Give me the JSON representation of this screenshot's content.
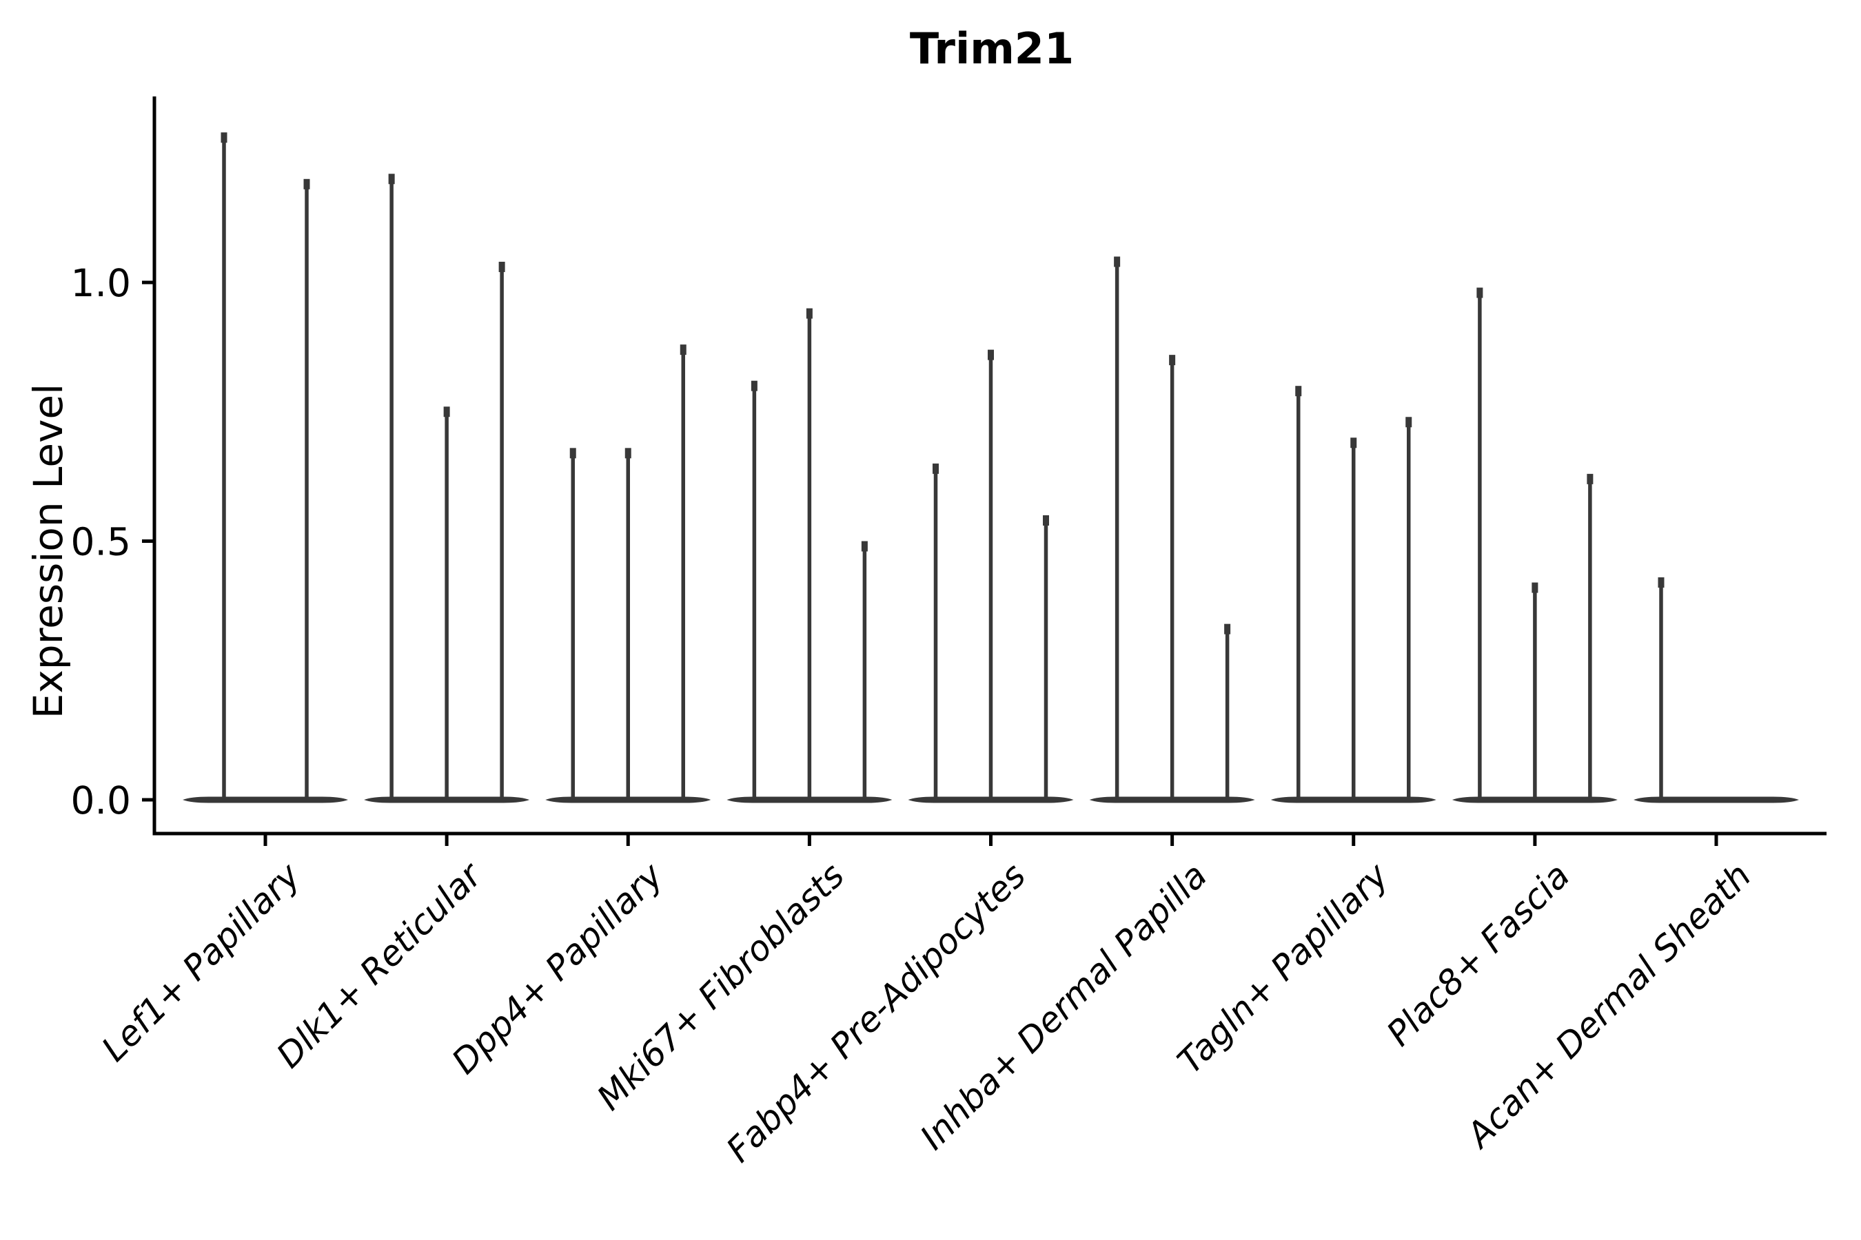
{
  "figure": {
    "title": "Trim21",
    "ylabel": "Expression Level"
  },
  "chart_data": {
    "type": "violin",
    "title": "Trim21",
    "xlabel": "",
    "ylabel": "Expression Level",
    "ylim": [
      -0.07,
      1.36
    ],
    "grid": false,
    "legend": "none",
    "yticks": [
      {
        "label": "0.0",
        "value": 0.0
      },
      {
        "label": "0.5",
        "value": 0.5
      },
      {
        "label": "1.0",
        "value": 1.0
      }
    ],
    "style": {
      "violin_color": "#383838",
      "axis_color": "#000000",
      "background": "#ffffff"
    },
    "categories": [
      {
        "label": "Lef1+ Papillary",
        "violin_max_values": [
          1.29,
          1.2
        ]
      },
      {
        "label": "Dlk1+ Reticular",
        "violin_max_values": [
          1.21,
          0.76,
          1.04
        ]
      },
      {
        "label": "Dpp4+ Papillary",
        "violin_max_values": [
          0.68,
          0.68,
          0.88
        ]
      },
      {
        "label": "Mki67+ Fibroblasts",
        "violin_max_values": [
          0.81,
          0.95,
          0.5
        ]
      },
      {
        "label": "Fabp4+ Pre-Adipocytes",
        "violin_max_values": [
          0.65,
          0.87,
          0.55
        ]
      },
      {
        "label": "Inhba+ Dermal Papilla",
        "violin_max_values": [
          1.05,
          0.86,
          0.34
        ]
      },
      {
        "label": "Tagln+ Papillary",
        "violin_max_values": [
          0.8,
          0.7,
          0.74
        ]
      },
      {
        "label": "Plac8+ Fascia",
        "violin_max_values": [
          0.99,
          0.42,
          0.63
        ]
      },
      {
        "label": "Acan+ Dermal Sheath",
        "violin_max_values": [
          0.43,
          0,
          0
        ]
      }
    ]
  }
}
